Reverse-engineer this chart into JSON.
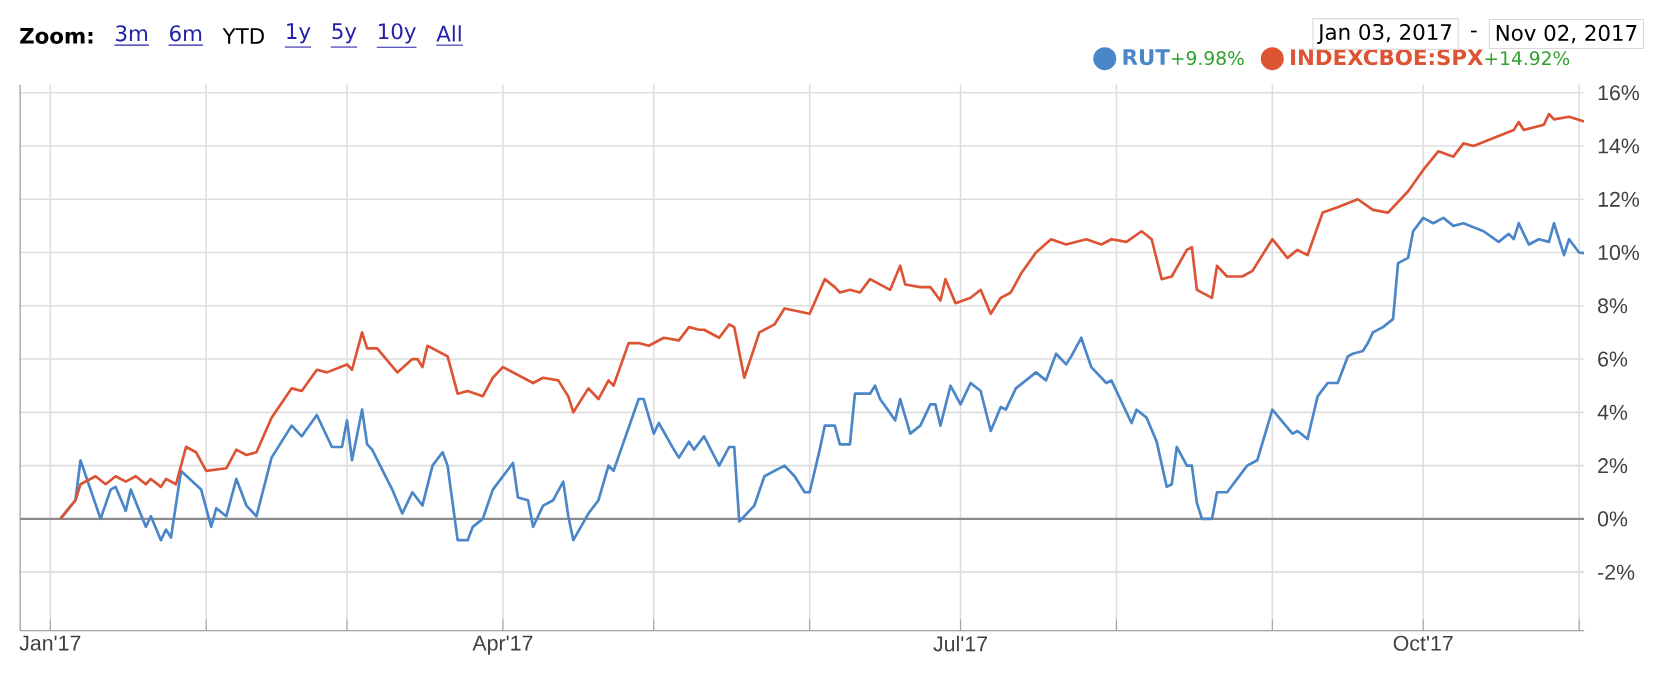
{
  "chart_data": {
    "type": "line",
    "xlim": [
      "2016-12-26",
      "2017-11-02"
    ],
    "xticks": [
      {
        "value": "2017-01-01",
        "label": "Jan'17"
      },
      {
        "value": "2017-02-01",
        "label": null
      },
      {
        "value": "2017-03-01",
        "label": null
      },
      {
        "value": "2017-04-01",
        "label": "Apr'17"
      },
      {
        "value": "2017-05-01",
        "label": null
      },
      {
        "value": "2017-06-01",
        "label": null
      },
      {
        "value": "2017-07-01",
        "label": "Jul'17"
      },
      {
        "value": "2017-08-01",
        "label": null
      },
      {
        "value": "2017-09-01",
        "label": null
      },
      {
        "value": "2017-10-01",
        "label": "Oct'17"
      },
      {
        "value": "2017-11-01",
        "label": null
      }
    ],
    "ylim": [
      -4.2,
      16.3
    ],
    "yticks": [
      {
        "value": -2,
        "label": "-2%"
      },
      {
        "value": 0,
        "label": "0%"
      },
      {
        "value": 2,
        "label": "2%"
      },
      {
        "value": 4,
        "label": "4%"
      },
      {
        "value": 6,
        "label": "6%"
      },
      {
        "value": 8,
        "label": "8%"
      },
      {
        "value": 10,
        "label": "10%"
      },
      {
        "value": 12,
        "label": "12%"
      },
      {
        "value": 14,
        "label": "14%"
      },
      {
        "value": 16,
        "label": "16%"
      }
    ],
    "grid": true,
    "legend": "top right",
    "marker": "none",
    "line_style": "solid",
    "ref_lines": [
      {
        "axis": "y",
        "value": 0,
        "color": "#8c8c8c"
      }
    ],
    "annotations": [
      "Zoom:",
      "3m",
      "6m",
      "YTD",
      "1y",
      "5y",
      "10y",
      "All",
      "Jan 03, 2017",
      "-",
      "Nov 02, 2017",
      "+9.98%",
      "+14.92%"
    ],
    "series": [
      {
        "name": "RUT",
        "color": "#4a86c8",
        "x": [
          "2017-01-03",
          "2017-01-06",
          "2017-01-07",
          "2017-01-09",
          "2017-01-11",
          "2017-01-13",
          "2017-01-14",
          "2017-01-16",
          "2017-01-17",
          "2017-01-20",
          "2017-01-21",
          "2017-01-23",
          "2017-01-24",
          "2017-01-25",
          "2017-01-27",
          "2017-01-31",
          "2017-02-02",
          "2017-02-03",
          "2017-02-05",
          "2017-02-07",
          "2017-02-09",
          "2017-02-11",
          "2017-02-14",
          "2017-02-18",
          "2017-02-20",
          "2017-02-23",
          "2017-02-26",
          "2017-02-28",
          "2017-03-01",
          "2017-03-02",
          "2017-03-04",
          "2017-03-05",
          "2017-03-06",
          "2017-03-10",
          "2017-03-12",
          "2017-03-14",
          "2017-03-16",
          "2017-03-18",
          "2017-03-20",
          "2017-03-21",
          "2017-03-23",
          "2017-03-25",
          "2017-03-26",
          "2017-03-28",
          "2017-03-30",
          "2017-04-03",
          "2017-04-04",
          "2017-04-06",
          "2017-04-07",
          "2017-04-09",
          "2017-04-11",
          "2017-04-13",
          "2017-04-14",
          "2017-04-15",
          "2017-04-18",
          "2017-04-20",
          "2017-04-22",
          "2017-04-23",
          "2017-04-28",
          "2017-04-29",
          "2017-05-01",
          "2017-05-02",
          "2017-05-05",
          "2017-05-06",
          "2017-05-08",
          "2017-05-09",
          "2017-05-11",
          "2017-05-14",
          "2017-05-16",
          "2017-05-17",
          "2017-05-18",
          "2017-05-21",
          "2017-05-23",
          "2017-05-27",
          "2017-05-29",
          "2017-05-31",
          "2017-06-01",
          "2017-06-03",
          "2017-06-04",
          "2017-06-06",
          "2017-06-07",
          "2017-06-09",
          "2017-06-10",
          "2017-06-13",
          "2017-06-14",
          "2017-06-15",
          "2017-06-18",
          "2017-06-19",
          "2017-06-21",
          "2017-06-23",
          "2017-06-25",
          "2017-06-26",
          "2017-06-27",
          "2017-06-29",
          "2017-07-01",
          "2017-07-03",
          "2017-07-05",
          "2017-07-07",
          "2017-07-09",
          "2017-07-10",
          "2017-07-12",
          "2017-07-16",
          "2017-07-18",
          "2017-07-20",
          "2017-07-22",
          "2017-07-23",
          "2017-07-25",
          "2017-07-27",
          "2017-07-30",
          "2017-07-31",
          "2017-08-04",
          "2017-08-05",
          "2017-08-07",
          "2017-08-09",
          "2017-08-11",
          "2017-08-12",
          "2017-08-13",
          "2017-08-15",
          "2017-08-16",
          "2017-08-17",
          "2017-08-18",
          "2017-08-20",
          "2017-08-21",
          "2017-08-23",
          "2017-08-27",
          "2017-08-29",
          "2017-09-01",
          "2017-09-05",
          "2017-09-06",
          "2017-09-08",
          "2017-09-10",
          "2017-09-12",
          "2017-09-14",
          "2017-09-16",
          "2017-09-17",
          "2017-09-19",
          "2017-09-20",
          "2017-09-21",
          "2017-09-23",
          "2017-09-25",
          "2017-09-26",
          "2017-09-28",
          "2017-09-29",
          "2017-10-01",
          "2017-10-03",
          "2017-10-05",
          "2017-10-07",
          "2017-10-09",
          "2017-10-13",
          "2017-10-16",
          "2017-10-18",
          "2017-10-19",
          "2017-10-20",
          "2017-10-22",
          "2017-10-24",
          "2017-10-26",
          "2017-10-27",
          "2017-10-28",
          "2017-10-29",
          "2017-10-30",
          "2017-11-01",
          "2017-11-02"
        ],
        "values": [
          0,
          0.7,
          2.2,
          1.1,
          0,
          1.1,
          1.2,
          0.3,
          1.1,
          -0.3,
          0.1,
          -0.8,
          -0.4,
          -0.7,
          1.8,
          1.1,
          -0.3,
          0.4,
          0.1,
          1.5,
          0.5,
          0.1,
          2.3,
          3.5,
          3.1,
          3.9,
          2.7,
          2.7,
          3.7,
          2.2,
          4.1,
          2.8,
          2.6,
          1.1,
          0.2,
          1.0,
          0.5,
          2.0,
          2.5,
          2.0,
          -0.8,
          -0.8,
          -0.3,
          0,
          1.1,
          2.1,
          0.8,
          0.7,
          -0.3,
          0.5,
          0.7,
          1.4,
          0.1,
          -0.8,
          0.2,
          0.7,
          2.0,
          1.8,
          4.5,
          4.5,
          3.2,
          3.6,
          2.6,
          2.3,
          2.9,
          2.6,
          3.1,
          2.0,
          2.7,
          2.7,
          -0.1,
          0.5,
          1.6,
          2.0,
          1.6,
          1.0,
          1.0,
          2.6,
          3.5,
          3.5,
          2.8,
          2.8,
          4.7,
          4.7,
          5.0,
          4.5,
          3.7,
          4.5,
          3.2,
          3.5,
          4.3,
          4.3,
          3.5,
          5.0,
          4.3,
          5.1,
          4.8,
          3.3,
          4.2,
          4.1,
          4.9,
          5.5,
          5.2,
          6.2,
          5.8,
          6.1,
          6.8,
          5.7,
          5.1,
          5.2,
          3.6,
          4.1,
          3.8,
          2.9,
          1.2,
          1.3,
          2.7,
          2.0,
          2.0,
          0.6,
          0,
          0,
          1.0,
          1.0,
          2.0,
          2.2,
          4.1,
          3.2,
          3.3,
          3.0,
          4.6,
          5.1,
          5.1,
          6.1,
          6.2,
          6.3,
          6.6,
          7.0,
          7.2,
          7.5,
          9.6,
          9.8,
          10.8,
          11.3,
          11.1,
          11.3,
          11.0,
          11.1,
          10.8,
          10.4,
          10.7,
          10.5,
          11.1,
          10.3,
          10.5,
          10.4,
          11.1,
          10.5,
          9.9,
          10.5,
          10.0,
          9.98
        ]
      },
      {
        "name": "INDEXCBOE:SPX",
        "color": "#dd5435",
        "x": [
          "2017-01-03",
          "2017-01-06",
          "2017-01-07",
          "2017-01-10",
          "2017-01-12",
          "2017-01-14",
          "2017-01-16",
          "2017-01-18",
          "2017-01-20",
          "2017-01-21",
          "2017-01-23",
          "2017-01-24",
          "2017-01-26",
          "2017-01-28",
          "2017-01-30",
          "2017-02-01",
          "2017-02-05",
          "2017-02-07",
          "2017-02-09",
          "2017-02-11",
          "2017-02-14",
          "2017-02-18",
          "2017-02-20",
          "2017-02-23",
          "2017-02-25",
          "2017-03-01",
          "2017-03-02",
          "2017-03-04",
          "2017-03-05",
          "2017-03-07",
          "2017-03-11",
          "2017-03-14",
          "2017-03-15",
          "2017-03-16",
          "2017-03-17",
          "2017-03-21",
          "2017-03-23",
          "2017-03-25",
          "2017-03-28",
          "2017-03-30",
          "2017-04-01",
          "2017-04-04",
          "2017-04-07",
          "2017-04-09",
          "2017-04-12",
          "2017-04-14",
          "2017-04-15",
          "2017-04-18",
          "2017-04-20",
          "2017-04-22",
          "2017-04-23",
          "2017-04-26",
          "2017-04-28",
          "2017-04-30",
          "2017-05-03",
          "2017-05-06",
          "2017-05-08",
          "2017-05-10",
          "2017-05-11",
          "2017-05-14",
          "2017-05-16",
          "2017-05-17",
          "2017-05-19",
          "2017-05-22",
          "2017-05-25",
          "2017-05-27",
          "2017-06-01",
          "2017-06-04",
          "2017-06-06",
          "2017-06-07",
          "2017-06-09",
          "2017-06-11",
          "2017-06-13",
          "2017-06-15",
          "2017-06-17",
          "2017-06-19",
          "2017-06-20",
          "2017-06-23",
          "2017-06-25",
          "2017-06-27",
          "2017-06-28",
          "2017-06-30",
          "2017-07-03",
          "2017-07-05",
          "2017-07-07",
          "2017-07-09",
          "2017-07-11",
          "2017-07-13",
          "2017-07-16",
          "2017-07-19",
          "2017-07-22",
          "2017-07-26",
          "2017-07-29",
          "2017-07-31",
          "2017-08-03",
          "2017-08-06",
          "2017-08-08",
          "2017-08-10",
          "2017-08-12",
          "2017-08-15",
          "2017-08-16",
          "2017-08-17",
          "2017-08-20",
          "2017-08-21",
          "2017-08-23",
          "2017-08-26",
          "2017-08-28",
          "2017-09-01",
          "2017-09-04",
          "2017-09-06",
          "2017-09-08",
          "2017-09-11",
          "2017-09-14",
          "2017-09-18",
          "2017-09-21",
          "2017-09-24",
          "2017-09-28",
          "2017-10-01",
          "2017-10-04",
          "2017-10-07",
          "2017-10-09",
          "2017-10-11",
          "2017-10-15",
          "2017-10-19",
          "2017-10-20",
          "2017-10-21",
          "2017-10-25",
          "2017-10-26",
          "2017-10-27",
          "2017-10-30",
          "2017-11-02"
        ],
        "values": [
          0,
          0.7,
          1.3,
          1.6,
          1.3,
          1.6,
          1.4,
          1.6,
          1.3,
          1.5,
          1.2,
          1.5,
          1.3,
          2.7,
          2.5,
          1.8,
          1.9,
          2.6,
          2.4,
          2.5,
          3.8,
          4.9,
          4.8,
          5.6,
          5.5,
          5.8,
          5.6,
          7.0,
          6.4,
          6.4,
          5.5,
          6.0,
          6.0,
          5.7,
          6.5,
          6.1,
          4.7,
          4.8,
          4.6,
          5.3,
          5.7,
          5.4,
          5.1,
          5.3,
          5.2,
          4.6,
          4.0,
          4.9,
          4.5,
          5.2,
          5.0,
          6.6,
          6.6,
          6.5,
          6.8,
          6.7,
          7.2,
          7.1,
          7.1,
          6.8,
          7.3,
          7.2,
          5.3,
          7.0,
          7.3,
          7.9,
          7.7,
          9.0,
          8.7,
          8.5,
          8.6,
          8.5,
          9.0,
          8.8,
          8.6,
          9.5,
          8.8,
          8.7,
          8.7,
          8.2,
          9.0,
          8.1,
          8.3,
          8.6,
          7.7,
          8.3,
          8.5,
          9.2,
          10.0,
          10.5,
          10.3,
          10.5,
          10.3,
          10.5,
          10.4,
          10.8,
          10.5,
          9.0,
          9.1,
          10.1,
          10.2,
          8.6,
          8.3,
          9.5,
          9.1,
          9.1,
          9.3,
          10.5,
          9.8,
          10.1,
          9.9,
          11.5,
          11.7,
          12.0,
          11.6,
          11.5,
          12.3,
          13.1,
          13.8,
          13.6,
          14.1,
          14.0,
          14.3,
          14.6,
          14.9,
          14.6,
          14.8,
          15.2,
          15.0,
          15.1,
          14.92
        ]
      }
    ]
  }
}
